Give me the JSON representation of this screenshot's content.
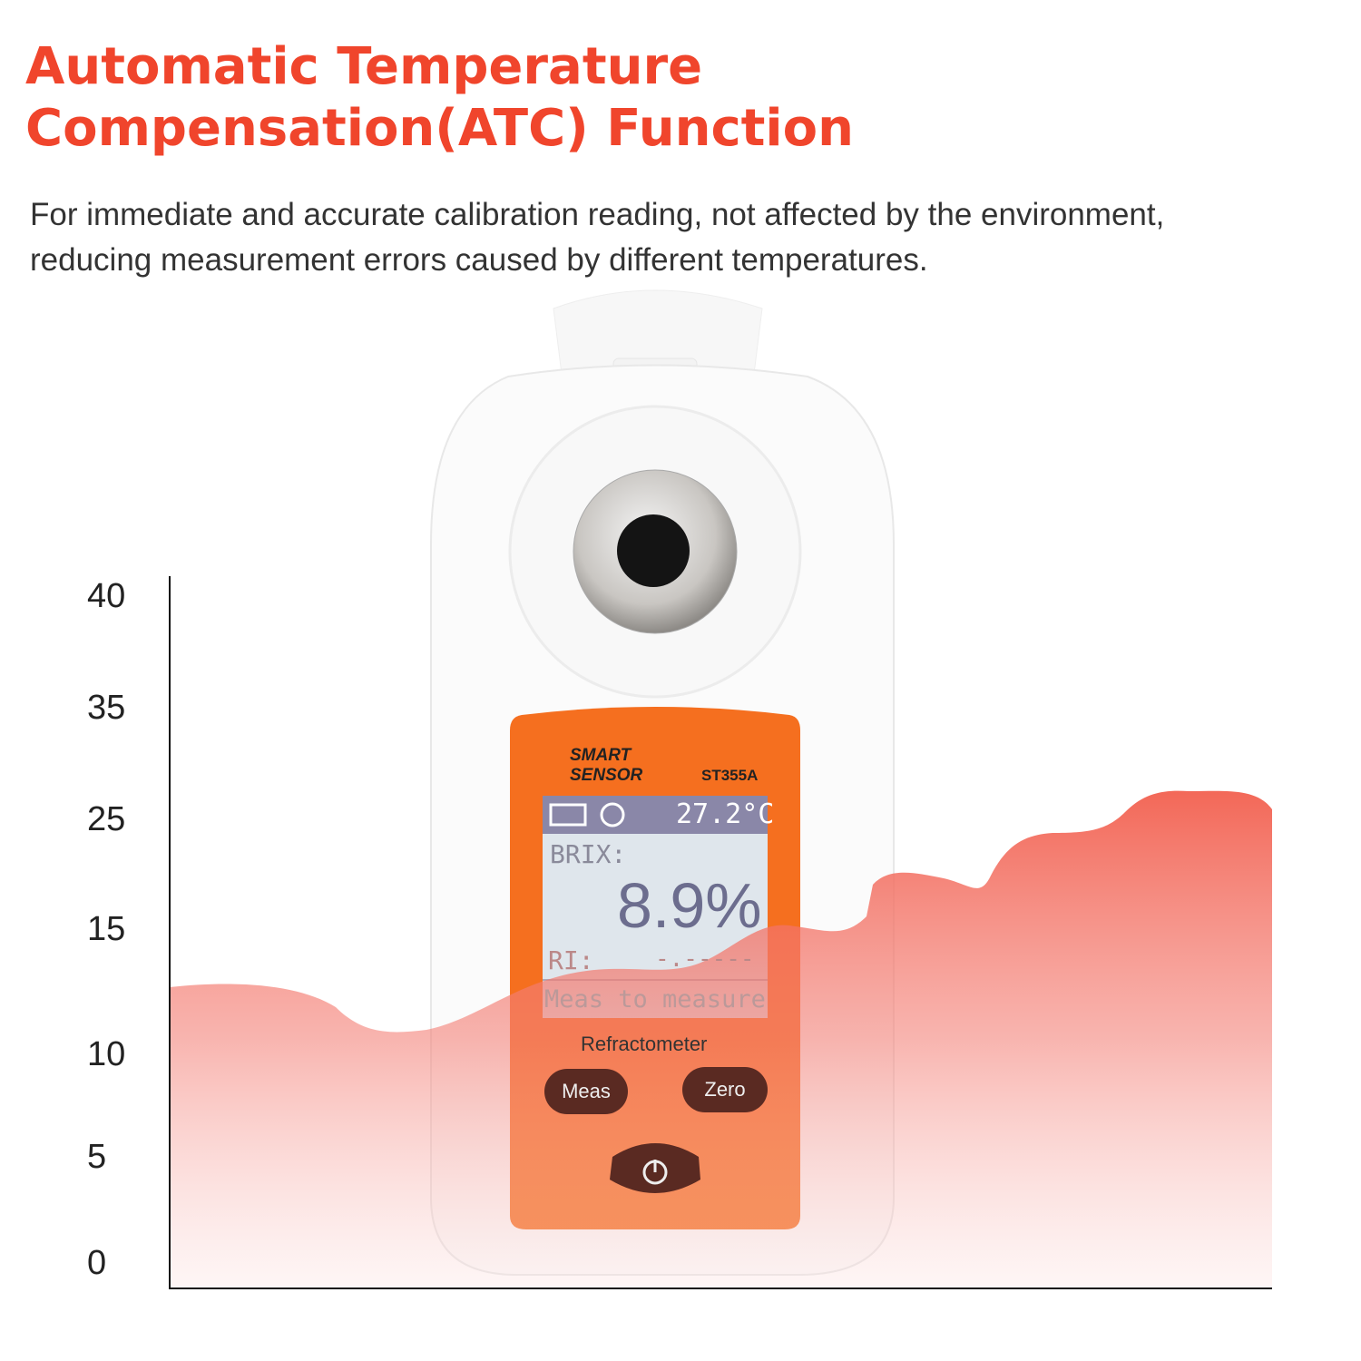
{
  "header": {
    "title_line1": "Automatic Temperature",
    "title_line2": "Compensation(ATC) Function",
    "subtitle_line1": "For immediate and accurate calibration reading, not affected by the environment,",
    "subtitle_line2": "reducing measurement errors caused by different temperatures."
  },
  "axis": {
    "tick_labels": [
      "40",
      "35",
      "25",
      "15",
      "10",
      "5",
      "0"
    ]
  },
  "device": {
    "brand_line1": "SMART",
    "brand_line2": "SENSOR",
    "model": "ST355A",
    "lcd": {
      "temperature": "27.2°C",
      "mode_label": "BRIX:",
      "reading": "8.9%",
      "ri_label": "RI:",
      "ri_value": "-.-----",
      "status": "Meas to measure"
    },
    "product_name": "Refractometer",
    "buttons": {
      "meas": "Meas",
      "zero": "Zero",
      "power": "power-icon"
    }
  },
  "colors": {
    "title": "#f0452c",
    "panel": "#f56f1f",
    "wave": "#f2604f"
  }
}
